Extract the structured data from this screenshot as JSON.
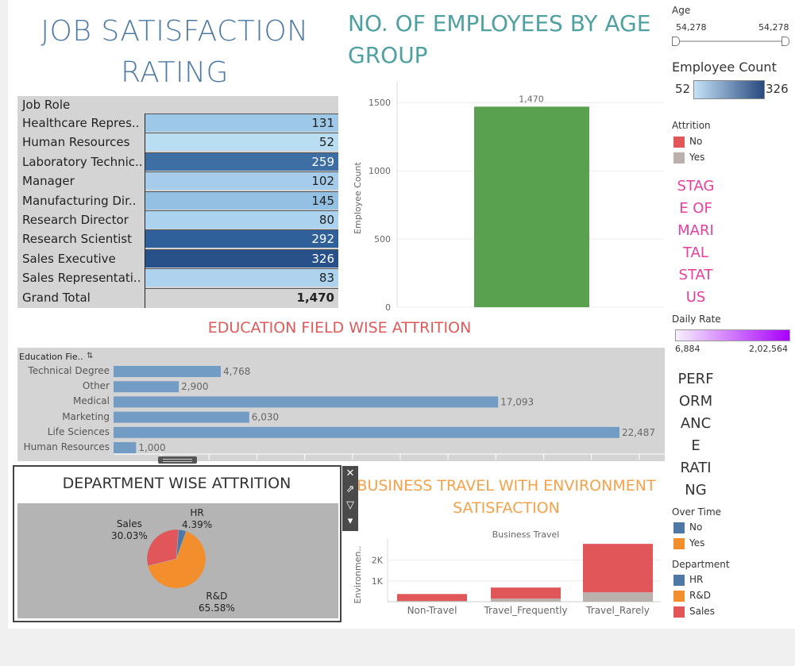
{
  "job_satisfaction": {
    "title": "JOB SATISFACTION RATING",
    "header": "Job Role",
    "rows": [
      {
        "role": "Healthcare Repres..",
        "count": "131",
        "color": "#9ec8e8"
      },
      {
        "role": "Human Resources",
        "count": "52",
        "color": "#b9ddf1"
      },
      {
        "role": "Laboratory Technic..",
        "count": "259",
        "color": "#3e6fa4"
      },
      {
        "role": "Manager",
        "count": "102",
        "color": "#a5cdeb"
      },
      {
        "role": "Manufacturing Dir..",
        "count": "145",
        "color": "#93c0e3"
      },
      {
        "role": "Research Director",
        "count": "80",
        "color": "#abd2ee"
      },
      {
        "role": "Research Scientist",
        "count": "292",
        "color": "#30609a"
      },
      {
        "role": "Sales Executive",
        "count": "326",
        "color": "#28518a"
      },
      {
        "role": "Sales Representati..",
        "count": "83",
        "color": "#add3ef"
      }
    ],
    "total_label": "Grand Total",
    "total_value": "1,470"
  },
  "age_chart": {
    "title": "NO. OF EMPLOYEES BY AGE GROUP",
    "chart_data": {
      "type": "bar",
      "categories": [
        ""
      ],
      "values": [
        1470
      ],
      "value_labels": [
        "1,470"
      ],
      "ylabel": "Employee Count",
      "yticks": [
        "0",
        "500",
        "1000",
        "1500"
      ],
      "ylim": [
        0,
        1600
      ],
      "color": "#59a14f"
    }
  },
  "filters": {
    "age_title": "Age",
    "age_min": "54,278",
    "age_max": "54,278",
    "emp_count_title": "Employee Count",
    "emp_count_min": "52",
    "emp_count_max": "326",
    "attrition_title": "Attrition",
    "attrition_items": [
      {
        "label": "No",
        "color": "#e15759"
      },
      {
        "label": "Yes",
        "color": "#bab0ac"
      }
    ],
    "marital_lines": [
      "STAG",
      "E OF",
      "MARI",
      "TAL",
      "STAT",
      "US"
    ],
    "daily_rate_title": "Daily Rate",
    "daily_rate_min": "6,884",
    "daily_rate_max": "2,02,564",
    "performance_lines": [
      "PERF",
      "ORM",
      "ANC",
      "E",
      "RATI",
      "NG"
    ],
    "overtime_title": "Over Time",
    "overtime_items": [
      {
        "label": "No",
        "color": "#4e79a7"
      },
      {
        "label": "Yes",
        "color": "#f28e2b"
      }
    ],
    "department_title": "Department",
    "department_items": [
      {
        "label": "HR",
        "color": "#4e79a7"
      },
      {
        "label": "R&D",
        "color": "#f28e2b"
      },
      {
        "label": "Sales",
        "color": "#e15759"
      }
    ]
  },
  "education": {
    "title": "EDUCATION FIELD WISE  ATTRITION",
    "header": "Education Fie..",
    "chart_data": {
      "type": "bar",
      "orientation": "horizontal",
      "categories": [
        "Technical Degree",
        "Other",
        "Medical",
        "Marketing",
        "Life Sciences",
        "Human Resources"
      ],
      "values": [
        4768,
        2900,
        17093,
        6030,
        22487,
        1000
      ],
      "value_labels": [
        "4,768",
        "2,900",
        "17,093",
        "6,030",
        "22,487",
        "1,000"
      ],
      "xlim": [
        0,
        24500
      ],
      "color": "#739cc4"
    }
  },
  "department": {
    "title": "DEPARTMENT WISE ATTRITION",
    "chart_data": {
      "type": "pie",
      "categories": [
        "HR",
        "R&D",
        "Sales"
      ],
      "values": [
        4.39,
        65.58,
        30.03
      ],
      "colors": [
        "#4e79a7",
        "#f28e2b",
        "#e15759"
      ]
    },
    "labels": {
      "hr_name": "HR",
      "hr_pct": "4.39%",
      "rd_name": "R&D",
      "rd_pct": "65.58%",
      "sales_name": "Sales",
      "sales_pct": "30.03%"
    },
    "tools": [
      "✕",
      "⇗",
      "▽",
      "▾"
    ]
  },
  "business_travel": {
    "title": "BUSINESS TRAVEL WITH ENVIRONMENT SATISFACTION",
    "header": "Business Travel",
    "chart_data": {
      "type": "bar",
      "stacked": true,
      "categories": [
        "Non-Travel",
        "Travel_Frequently",
        "Travel_Rarely"
      ],
      "series": [
        {
          "name": "Yes",
          "values": [
            40,
            150,
            450
          ],
          "color": "#bab0ac"
        },
        {
          "name": "No",
          "values": [
            330,
            530,
            2330
          ],
          "color": "#e15759"
        }
      ],
      "ylabel": "Environmen..",
      "yticks": [
        "1K",
        "2K"
      ],
      "ylim": [
        0,
        2900
      ]
    }
  }
}
